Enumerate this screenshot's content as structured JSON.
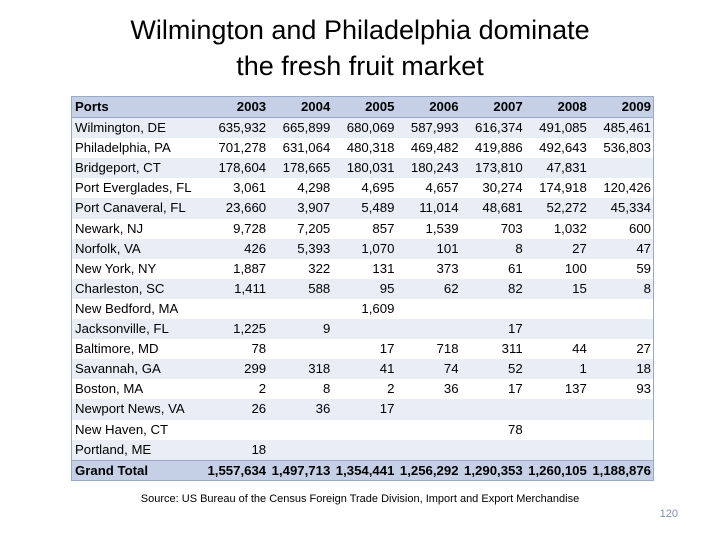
{
  "slide": {
    "title_line1": "Wilmington and Philadelphia dominate",
    "title_line2": "the fresh fruit market",
    "source": "Source: US Bureau of the Census Foreign Trade Division, Import and Export Merchandise",
    "page_number": "120"
  },
  "table": {
    "header": {
      "port": "Ports",
      "years": [
        "2003",
        "2004",
        "2005",
        "2006",
        "2007",
        "2008",
        "2009"
      ]
    },
    "rows": [
      {
        "port": "Wilmington, DE",
        "values": [
          "635,932",
          "665,899",
          "680,069",
          "587,993",
          "616,374",
          "491,085",
          "485,461"
        ]
      },
      {
        "port": "Philadelphia, PA",
        "values": [
          "701,278",
          "631,064",
          "480,318",
          "469,482",
          "419,886",
          "492,643",
          "536,803"
        ]
      },
      {
        "port": "Bridgeport, CT",
        "values": [
          "178,604",
          "178,665",
          "180,031",
          "180,243",
          "173,810",
          "47,831",
          ""
        ]
      },
      {
        "port": "Port Everglades, FL",
        "values": [
          "3,061",
          "4,298",
          "4,695",
          "4,657",
          "30,274",
          "174,918",
          "120,426"
        ]
      },
      {
        "port": "Port Canaveral, FL",
        "values": [
          "23,660",
          "3,907",
          "5,489",
          "11,014",
          "48,681",
          "52,272",
          "45,334"
        ]
      },
      {
        "port": "Newark, NJ",
        "values": [
          "9,728",
          "7,205",
          "857",
          "1,539",
          "703",
          "1,032",
          "600"
        ]
      },
      {
        "port": "Norfolk, VA",
        "values": [
          "426",
          "5,393",
          "1,070",
          "101",
          "8",
          "27",
          "47"
        ]
      },
      {
        "port": "New York, NY",
        "values": [
          "1,887",
          "322",
          "131",
          "373",
          "61",
          "100",
          "59"
        ]
      },
      {
        "port": "Charleston, SC",
        "values": [
          "1,411",
          "588",
          "95",
          "62",
          "82",
          "15",
          "8"
        ]
      },
      {
        "port": "New Bedford, MA",
        "values": [
          "",
          "",
          "1,609",
          "",
          "",
          "",
          ""
        ]
      },
      {
        "port": "Jacksonville, FL",
        "values": [
          "1,225",
          "9",
          "",
          "",
          "17",
          "",
          ""
        ]
      },
      {
        "port": "Baltimore, MD",
        "values": [
          "78",
          "",
          "17",
          "718",
          "311",
          "44",
          "27"
        ]
      },
      {
        "port": "Savannah, GA",
        "values": [
          "299",
          "318",
          "41",
          "74",
          "52",
          "1",
          "18"
        ]
      },
      {
        "port": "Boston, MA",
        "values": [
          "2",
          "8",
          "2",
          "36",
          "17",
          "137",
          "93"
        ]
      },
      {
        "port": "Newport News, VA",
        "values": [
          "26",
          "36",
          "17",
          "",
          "",
          "",
          ""
        ]
      },
      {
        "port": "New Haven, CT",
        "values": [
          "",
          "",
          "",
          "",
          "78",
          "",
          ""
        ]
      },
      {
        "port": "Portland, ME",
        "values": [
          "18",
          "",
          "",
          "",
          "",
          "",
          ""
        ]
      }
    ],
    "total": {
      "label": "Grand Total",
      "values": [
        "1,557,634",
        "1,497,713",
        "1,354,441",
        "1,256,292",
        "1,290,353",
        "1,260,105",
        "1,188,876"
      ]
    }
  },
  "colors": {
    "header_fill": "#c5d0e6",
    "band_fill": "#e8edf6",
    "border": "#9aa9c6",
    "page_number": "#7f8fa9"
  }
}
